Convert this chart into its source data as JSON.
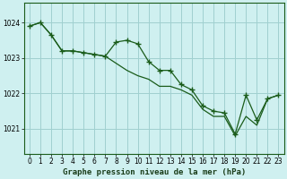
{
  "background_color": "#cff0f0",
  "grid_color": "#a0d0d0",
  "line_color": "#1a5c1a",
  "xlabel": "Graphe pression niveau de la mer (hPa)",
  "xlim": [
    -0.5,
    23.5
  ],
  "ylim": [
    1020.3,
    1024.55
  ],
  "yticks": [
    1021,
    1022,
    1023,
    1024
  ],
  "xticks": [
    0,
    1,
    2,
    3,
    4,
    5,
    6,
    7,
    8,
    9,
    10,
    11,
    12,
    13,
    14,
    15,
    16,
    17,
    18,
    19,
    20,
    21,
    22,
    23
  ],
  "series1_x": [
    0,
    1,
    2,
    3,
    4,
    5,
    6,
    7,
    8,
    9,
    10,
    11,
    12,
    13,
    14,
    15,
    16,
    17,
    18,
    19,
    20,
    21,
    22,
    23
  ],
  "series1_y": [
    1023.9,
    1024.0,
    1023.65,
    1023.2,
    1023.2,
    1023.15,
    1023.1,
    1023.05,
    1023.45,
    1023.5,
    1023.4,
    1022.9,
    1022.65,
    1022.65,
    1022.25,
    1022.1,
    1021.65,
    1021.5,
    1021.45,
    1020.85,
    1021.95,
    1021.25,
    1021.85,
    1021.95
  ],
  "series2_x": [
    0,
    1,
    2,
    3,
    4,
    5,
    6,
    7,
    8,
    9,
    10,
    11,
    12,
    13,
    14,
    15,
    16,
    17,
    18,
    19,
    20,
    21,
    22,
    23
  ],
  "series2_y": [
    1023.9,
    1024.0,
    1023.65,
    1023.2,
    1023.2,
    1023.15,
    1023.1,
    1023.05,
    1022.85,
    1022.65,
    1022.5,
    1022.4,
    1022.2,
    1022.2,
    1022.1,
    1021.95,
    1021.55,
    1021.35,
    1021.35,
    1020.8,
    1021.35,
    1021.1,
    1021.85,
    1021.95
  ],
  "tick_fontsize": 5.5,
  "xlabel_fontsize": 6.5,
  "spine_color": "#1a5c1a"
}
